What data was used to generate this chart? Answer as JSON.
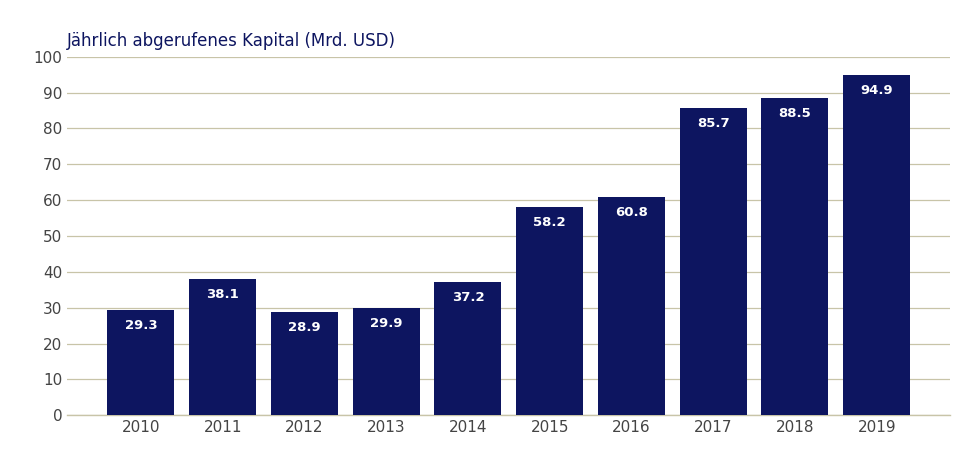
{
  "categories": [
    "2010",
    "2011",
    "2012",
    "2013",
    "2014",
    "2015",
    "2016",
    "2017",
    "2018",
    "2019"
  ],
  "values": [
    29.3,
    38.1,
    28.9,
    29.9,
    37.2,
    58.2,
    60.8,
    85.7,
    88.5,
    94.9
  ],
  "bar_color": "#0d1560",
  "label_color": "#ffffff",
  "title": "Jährlich abgerufenes Kapital (Mrd. USD)",
  "title_color": "#0d1560",
  "title_fontsize": 12,
  "tick_fontsize": 11,
  "label_fontsize": 9.5,
  "ylim": [
    0,
    100
  ],
  "yticks": [
    0,
    10,
    20,
    30,
    40,
    50,
    60,
    70,
    80,
    90,
    100
  ],
  "grid_color": "#c8c4a8",
  "background_color": "#ffffff",
  "bar_width": 0.82
}
